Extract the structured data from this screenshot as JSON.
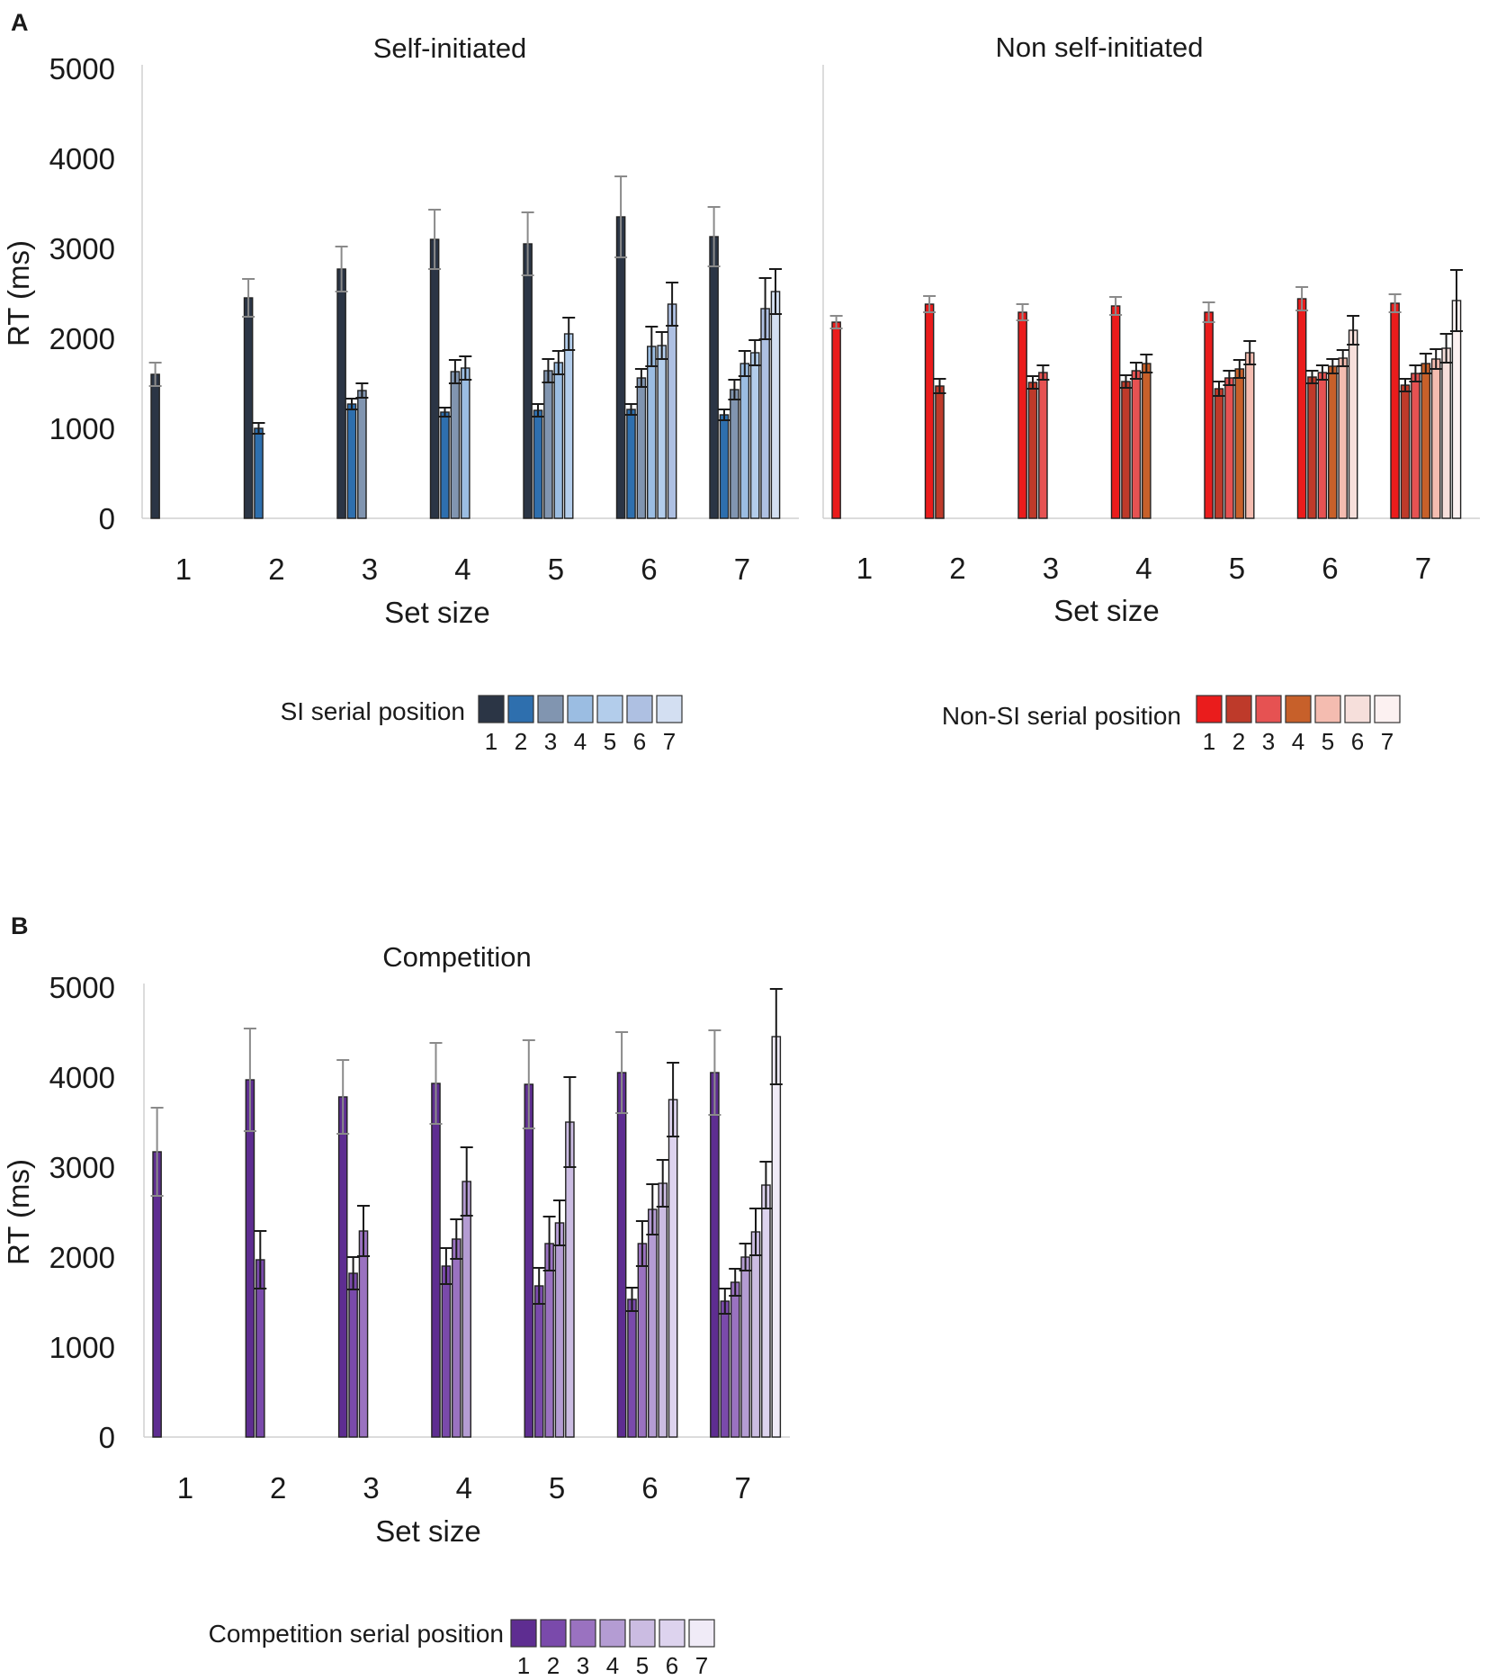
{
  "figure": {
    "panel_a_label": "A",
    "panel_b_label": "B"
  },
  "chart_data": [
    {
      "id": "si",
      "type": "bar",
      "title": "Self-initiated",
      "xlabel": "Set size",
      "ylabel": "RT (ms)",
      "ylim": [
        0,
        5000
      ],
      "yticks": [
        "0",
        "1000",
        "2000",
        "3000",
        "4000",
        "5000"
      ],
      "categories": [
        "1",
        "2",
        "3",
        "4",
        "5",
        "6",
        "7"
      ],
      "serial_positions": [
        "1",
        "2",
        "3",
        "4",
        "5",
        "6",
        "7"
      ],
      "colors": [
        "#2b3545",
        "#2e6fae",
        "#8195b0",
        "#9bbde2",
        "#b3cdeb",
        "#aec0e2",
        "#d3dff2"
      ],
      "error_colors": [
        "#8a8a8a",
        "#1a1a1a",
        "#1a1a1a",
        "#1a1a1a",
        "#1a1a1a",
        "#1a1a1a",
        "#1a1a1a"
      ],
      "values": [
        [
          1600
        ],
        [
          2450,
          1000
        ],
        [
          2770,
          1270,
          1420
        ],
        [
          3100,
          1180,
          1630,
          1670
        ],
        [
          3050,
          1200,
          1640,
          1730,
          2050
        ],
        [
          3350,
          1210,
          1560,
          1910,
          1920,
          2380
        ],
        [
          3130,
          1150,
          1430,
          1720,
          1840,
          2330,
          2520
        ]
      ],
      "errors": [
        [
          130
        ],
        [
          210,
          60
        ],
        [
          250,
          60,
          80
        ],
        [
          330,
          50,
          130,
          130
        ],
        [
          350,
          70,
          130,
          130,
          180
        ],
        [
          450,
          60,
          100,
          220,
          150,
          240
        ],
        [
          330,
          60,
          110,
          140,
          140,
          340,
          250
        ]
      ],
      "legend": {
        "title": "SI serial position",
        "labels": [
          "1",
          "2",
          "3",
          "4",
          "5",
          "6",
          "7"
        ]
      }
    },
    {
      "id": "nsi",
      "type": "bar",
      "title": "Non self-initiated",
      "xlabel": "Set size",
      "ylabel": "RT (ms)",
      "ylim": [
        0,
        5000
      ],
      "categories": [
        "1",
        "2",
        "3",
        "4",
        "5",
        "6",
        "7"
      ],
      "serial_positions": [
        "1",
        "2",
        "3",
        "4",
        "5",
        "6",
        "7"
      ],
      "colors": [
        "#ea1c1c",
        "#be3a2a",
        "#e65252",
        "#c7602a",
        "#f4bcb0",
        "#f6dfdb",
        "#fcf1f1"
      ],
      "error_colors": [
        "#8a8a8a",
        "#1a1a1a",
        "#1a1a1a",
        "#1a1a1a",
        "#1a1a1a",
        "#1a1a1a",
        "#1a1a1a"
      ],
      "values": [
        [
          2180
        ],
        [
          2380,
          1470
        ],
        [
          2290,
          1510,
          1620
        ],
        [
          2360,
          1520,
          1640,
          1720
        ],
        [
          2290,
          1440,
          1560,
          1660,
          1840
        ],
        [
          2440,
          1570,
          1620,
          1690,
          1780,
          2090
        ],
        [
          2390,
          1480,
          1610,
          1720,
          1770,
          1890,
          2420
        ]
      ],
      "errors": [
        [
          70
        ],
        [
          90,
          80
        ],
        [
          90,
          70,
          80
        ],
        [
          100,
          70,
          90,
          100
        ],
        [
          110,
          80,
          80,
          100,
          130
        ],
        [
          130,
          70,
          80,
          80,
          90,
          160
        ],
        [
          100,
          70,
          90,
          110,
          110,
          160,
          340
        ]
      ],
      "legend": {
        "title": "Non-SI serial position",
        "labels": [
          "1",
          "2",
          "3",
          "4",
          "5",
          "6",
          "7"
        ]
      }
    },
    {
      "id": "comp",
      "type": "bar",
      "title": "Competition",
      "xlabel": "Set size",
      "ylabel": "RT (ms)",
      "ylim": [
        0,
        5000
      ],
      "yticks": [
        "0",
        "1000",
        "2000",
        "3000",
        "4000",
        "5000"
      ],
      "categories": [
        "1",
        "2",
        "3",
        "4",
        "5",
        "6",
        "7"
      ],
      "serial_positions": [
        "1",
        "2",
        "3",
        "4",
        "5",
        "6",
        "7"
      ],
      "colors": [
        "#5e2d91",
        "#7a4aab",
        "#9a72c0",
        "#b49cd3",
        "#cbbce2",
        "#ddd3ee",
        "#f0ebf7"
      ],
      "error_colors": [
        "#8a8a8a",
        "#1a1a1a",
        "#1a1a1a",
        "#1a1a1a",
        "#1a1a1a",
        "#1a1a1a",
        "#1a1a1a"
      ],
      "values": [
        [
          3170
        ],
        [
          3970,
          1970
        ],
        [
          3780,
          1820,
          2290
        ],
        [
          3930,
          1900,
          2200,
          2840
        ],
        [
          3920,
          1680,
          2150,
          2380,
          3500
        ],
        [
          4050,
          1530,
          2150,
          2530,
          2820,
          3750
        ],
        [
          4050,
          1510,
          1720,
          2000,
          2280,
          2800,
          4450
        ]
      ],
      "errors": [
        [
          490
        ],
        [
          570,
          320
        ],
        [
          410,
          180,
          280
        ],
        [
          450,
          200,
          220,
          380
        ],
        [
          490,
          200,
          300,
          250,
          500
        ],
        [
          450,
          130,
          250,
          280,
          260,
          410
        ],
        [
          470,
          140,
          150,
          150,
          260,
          260,
          530
        ]
      ],
      "legend": {
        "title": "Competition serial position",
        "labels": [
          "1",
          "2",
          "3",
          "4",
          "5",
          "6",
          "7"
        ]
      }
    }
  ]
}
